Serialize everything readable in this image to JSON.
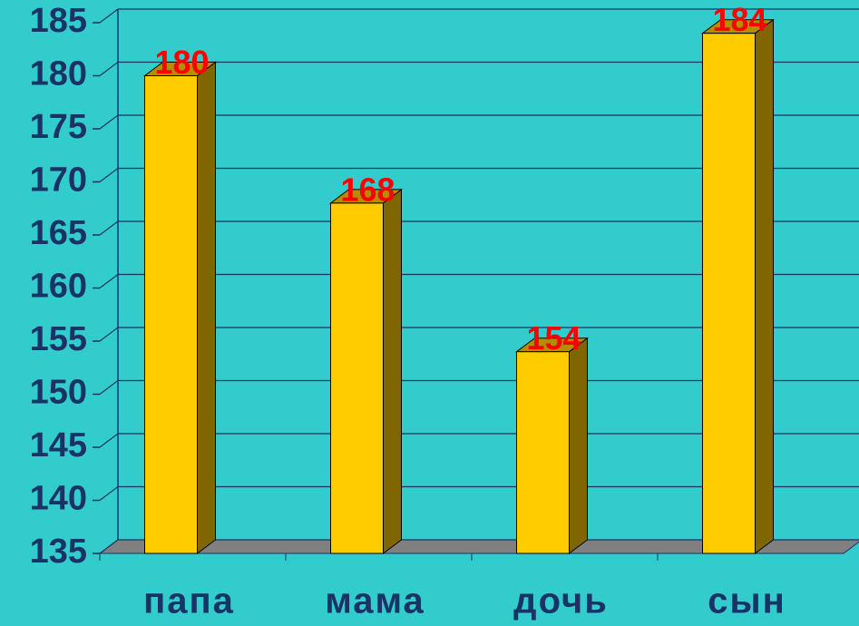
{
  "chart_data": {
    "type": "bar3d",
    "categories": [
      "папа",
      "мама",
      "дочь",
      "сын"
    ],
    "values": [
      180,
      168,
      154,
      184
    ],
    "color": "#ffcc00",
    "ylim": [
      135,
      185
    ],
    "yticks": [
      135,
      140,
      145,
      150,
      155,
      160,
      165,
      170,
      175,
      180,
      185
    ],
    "grid": true
  }
}
